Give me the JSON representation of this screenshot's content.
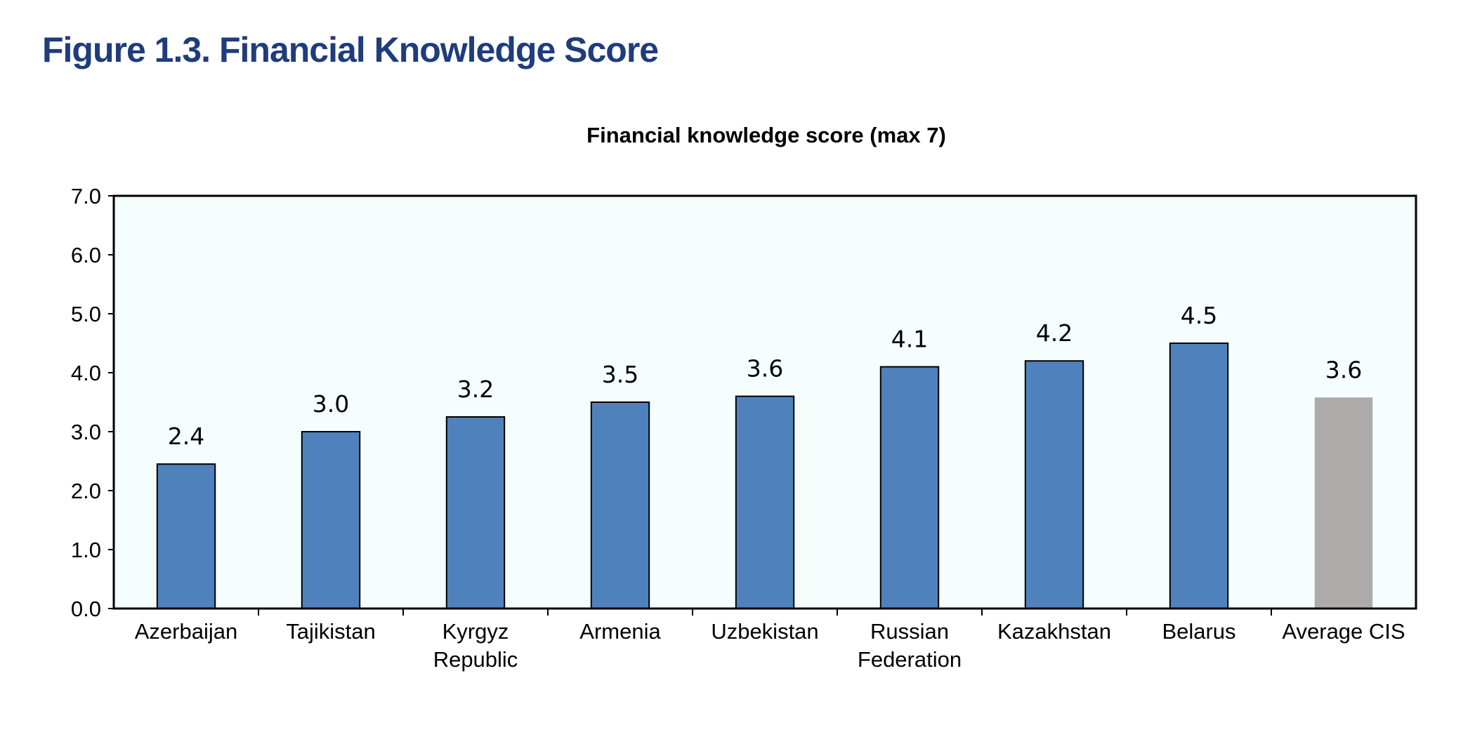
{
  "figure": {
    "title": "Figure 1.3. Financial Knowledge Score"
  },
  "colors": {
    "title": "#1f3c7b",
    "bar": "#4f81bd",
    "bar_average": "#aeaaaa",
    "plot_bg": "#f5fdfd"
  },
  "chart_data": {
    "type": "bar",
    "title": "Financial knowledge score (max 7)",
    "xlabel": "",
    "ylabel": "",
    "ylim": [
      0,
      7
    ],
    "yticks": [
      "0.0",
      "1.0",
      "2.0",
      "3.0",
      "4.0",
      "5.0",
      "6.0",
      "7.0"
    ],
    "grid": false,
    "legend": "none",
    "categories": [
      "Azerbaijan",
      "Tajikistan",
      "Kyrgyz Republic",
      "Armenia",
      "Uzbekistan",
      "Russian Federation",
      "Kazakhstan",
      "Belarus",
      "Average CIS"
    ],
    "category_lines": [
      [
        "Azerbaijan"
      ],
      [
        "Tajikistan"
      ],
      [
        "Kyrgyz",
        "Republic"
      ],
      [
        "Armenia"
      ],
      [
        "Uzbekistan"
      ],
      [
        "Russian",
        "Federation"
      ],
      [
        "Kazakhstan"
      ],
      [
        "Belarus"
      ],
      [
        "Average CIS"
      ]
    ],
    "values": [
      2.45,
      3.0,
      3.25,
      3.5,
      3.6,
      4.1,
      4.2,
      4.5,
      3.58
    ],
    "value_labels": [
      "2.4",
      "3.0",
      "3.2",
      "3.5",
      "3.6",
      "4.1",
      "4.2",
      "4.5",
      "3.6"
    ],
    "highlight": [
      "Average CIS"
    ]
  }
}
